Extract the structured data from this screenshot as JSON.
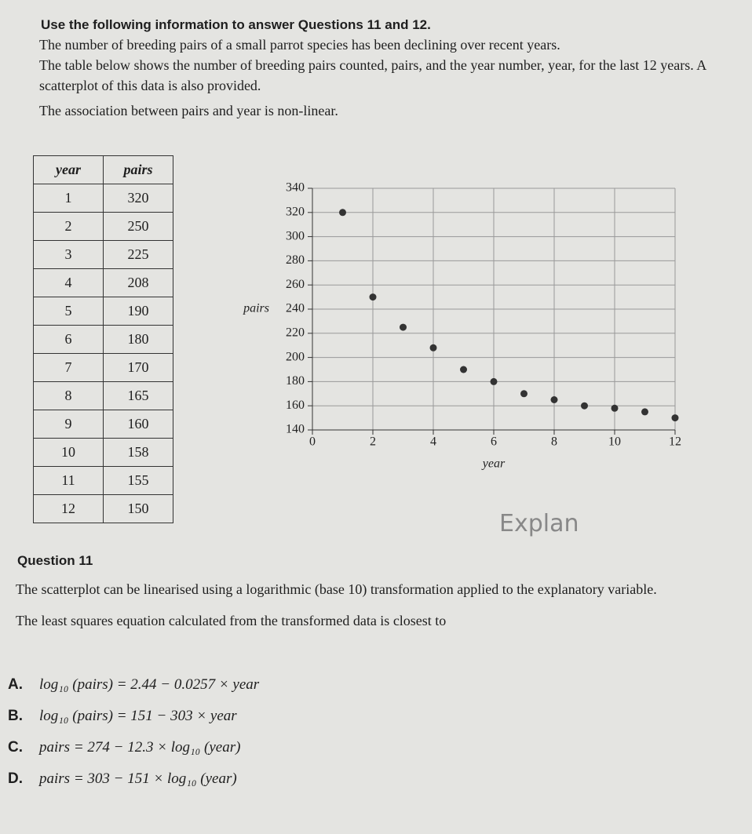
{
  "header": {
    "title": "Use the following information to answer Questions 11 and 12."
  },
  "paragraphs": [
    "The number of breeding pairs of a small parrot species has been declining over recent years.",
    "The table below shows the number of breeding pairs counted, pairs, and the year number, year, for the last 12 years. A scatterplot of this data is also provided.",
    "The association between pairs and year is non-linear."
  ],
  "table": {
    "header": [
      "year",
      "pairs"
    ],
    "rows": [
      [
        "1",
        "320"
      ],
      [
        "2",
        "250"
      ],
      [
        "3",
        "225"
      ],
      [
        "4",
        "208"
      ],
      [
        "5",
        "190"
      ],
      [
        "6",
        "180"
      ],
      [
        "7",
        "170"
      ],
      [
        "8",
        "165"
      ],
      [
        "9",
        "160"
      ],
      [
        "10",
        "158"
      ],
      [
        "11",
        "155"
      ],
      [
        "12",
        "150"
      ]
    ]
  },
  "chart_data": {
    "type": "scatter",
    "x_label": "year",
    "y_label": "pairs",
    "x": [
      1,
      2,
      3,
      4,
      5,
      6,
      7,
      8,
      9,
      10,
      11,
      12
    ],
    "series": [
      {
        "name": "pairs",
        "color": "#333333",
        "values": [
          320,
          250,
          225,
          208,
          190,
          180,
          170,
          165,
          160,
          158,
          155,
          150
        ]
      }
    ],
    "xlim": [
      0,
      12
    ],
    "xticks": [
      0,
      2,
      4,
      6,
      8,
      10,
      12
    ],
    "ylim": [
      140,
      340
    ],
    "yticks": [
      140,
      160,
      180,
      200,
      220,
      240,
      260,
      280,
      300,
      320,
      340
    ],
    "grid": true
  },
  "annotation": "Explan",
  "question": {
    "title": "Question 11",
    "paragraphs": [
      "The scatterplot can be linearised using a logarithmic (base 10) transformation applied to the explanatory variable.",
      "The least squares equation calculated from the transformed data is closest to"
    ],
    "options": [
      {
        "letter": "A.",
        "text": "log₁₀ (pairs) = 2.44 − 0.0257 × year"
      },
      {
        "letter": "B.",
        "text": "log₁₀ (pairs) = 151 − 303 × year"
      },
      {
        "letter": "C.",
        "text": "pairs = 274 − 12.3 × log₁₀ (year)"
      },
      {
        "letter": "D.",
        "text": "pairs = 303 − 151 × log₁₀ (year)"
      }
    ]
  }
}
